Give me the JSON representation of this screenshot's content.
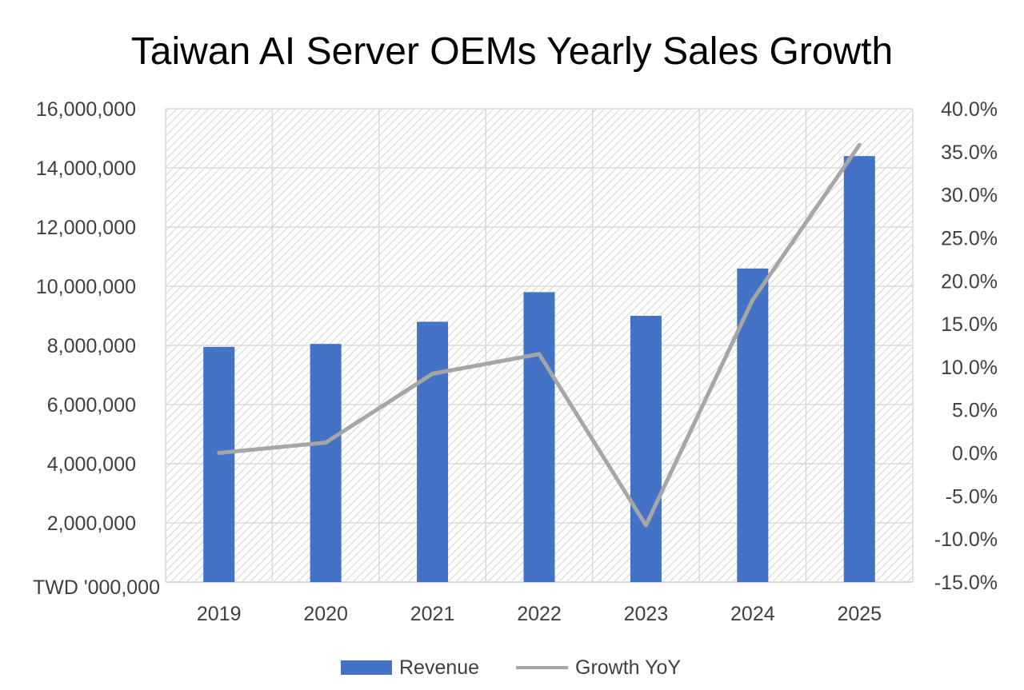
{
  "chart_data": {
    "type": "bar+line",
    "title": "Taiwan AI Server OEMs Yearly Sales Growth",
    "categories": [
      "2019",
      "2020",
      "2021",
      "2022",
      "2023",
      "2024",
      "2025"
    ],
    "series": [
      {
        "name": "Revenue",
        "type": "bar",
        "axis": "left",
        "color": "#4472C4",
        "values": [
          7950000,
          8050000,
          8800000,
          9800000,
          9000000,
          10600000,
          14400000
        ]
      },
      {
        "name": "Growth YoY",
        "type": "line",
        "axis": "right",
        "color": "#A6A6A6",
        "values": [
          0.0,
          1.2,
          9.2,
          11.5,
          -8.4,
          17.8,
          35.8
        ]
      }
    ],
    "left_axis": {
      "label": "TWD '000,000",
      "ylim": [
        0,
        16000000
      ],
      "tick_values": [
        2000000,
        4000000,
        6000000,
        8000000,
        10000000,
        12000000,
        14000000,
        16000000
      ],
      "tick_labels": [
        "2,000,000",
        "4,000,000",
        "6,000,000",
        "8,000,000",
        "10,000,000",
        "12,000,000",
        "14,000,000",
        "16,000,000"
      ]
    },
    "right_axis": {
      "ylim": [
        -15,
        40
      ],
      "tick_values": [
        -15,
        -10,
        -5,
        0,
        5,
        10,
        15,
        20,
        25,
        30,
        35,
        40
      ],
      "tick_labels": [
        "-15.0%",
        "-10.0%",
        "-5.0%",
        "0.0%",
        "5.0%",
        "10.0%",
        "15.0%",
        "20.0%",
        "25.0%",
        "30.0%",
        "35.0%",
        "40.0%"
      ]
    },
    "grid": true,
    "legend": {
      "position": "bottom",
      "entries": [
        "Revenue",
        "Growth YoY"
      ]
    }
  }
}
